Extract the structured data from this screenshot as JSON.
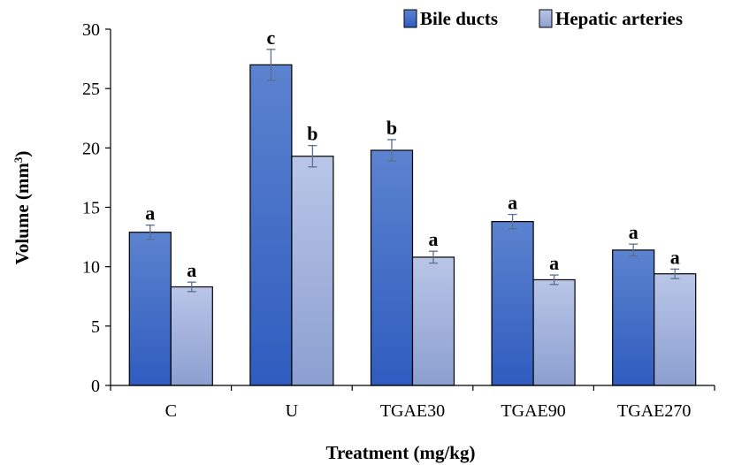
{
  "chart_data": {
    "type": "bar",
    "categories": [
      "C",
      "U",
      "TGAE30",
      "TGAE90",
      "TGAE270"
    ],
    "series": [
      {
        "name": "Bile ducts",
        "values": [
          12.9,
          27.0,
          19.8,
          13.8,
          11.4
        ],
        "errors": [
          0.6,
          1.3,
          0.9,
          0.6,
          0.5
        ],
        "labels": [
          "a",
          "c",
          "b",
          "a",
          "a"
        ],
        "color": "#4a74c9"
      },
      {
        "name": "Hepatic arteries",
        "values": [
          8.3,
          19.3,
          10.8,
          8.9,
          9.4
        ],
        "errors": [
          0.4,
          0.9,
          0.5,
          0.4,
          0.4
        ],
        "labels": [
          "a",
          "b",
          "a",
          "a",
          "a"
        ],
        "color": "#a8b6dc"
      }
    ],
    "xlabel": "Treatment (mg/kg)",
    "ylabel_main": "Volume (mm",
    "ylabel_sup": "3",
    "ylabel_end": ")",
    "ylim": [
      0,
      30
    ],
    "yticks": [
      0,
      5,
      10,
      15,
      20,
      25,
      30
    ],
    "legend_position": "top-right",
    "grid": false
  }
}
